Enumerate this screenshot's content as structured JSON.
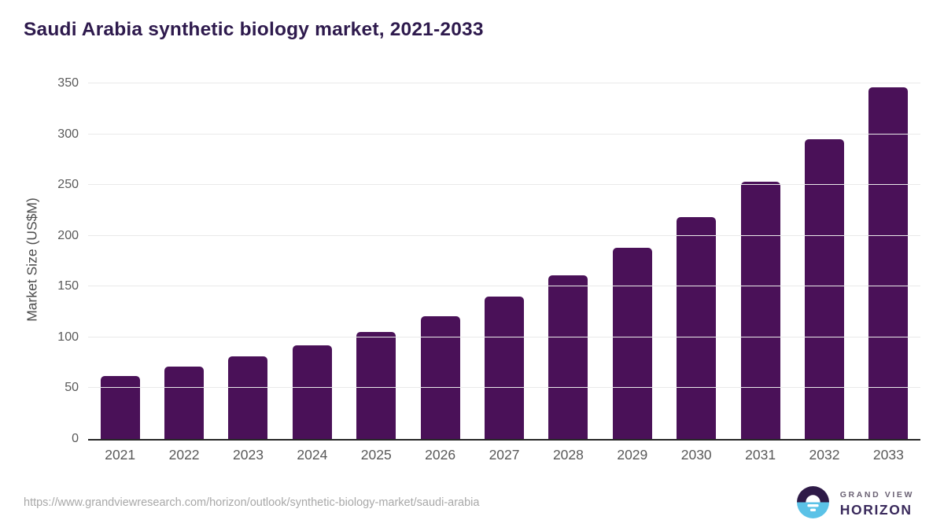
{
  "header": {
    "title": "Saudi Arabia synthetic biology market, 2021-2033"
  },
  "chart_data": {
    "type": "bar",
    "title": "Saudi Arabia synthetic biology market, 2021-2033",
    "categories": [
      "2021",
      "2022",
      "2023",
      "2024",
      "2025",
      "2026",
      "2027",
      "2028",
      "2029",
      "2030",
      "2031",
      "2032",
      "2033"
    ],
    "values": [
      62,
      71,
      81,
      92,
      105,
      121,
      140,
      161,
      188,
      218,
      253,
      295,
      346
    ],
    "xlabel": "",
    "ylabel": "Market Size (US$M)",
    "ylim": [
      0,
      350
    ],
    "yticks": [
      0,
      50,
      100,
      150,
      200,
      250,
      300,
      350
    ],
    "grid": true,
    "legend": "none",
    "bar_color": "#4a1158",
    "gridline_color": "#e9e9e9",
    "axis_line_color": "#262626",
    "tick_label_color": "#595959",
    "axis_title_color": "#4d4d4d",
    "title_color": "#2e1a4d"
  },
  "footer": {
    "source_url": "https://www.grandviewresearch.com/horizon/outlook/synthetic-biology-market/saudi-arabia",
    "logo": {
      "brand_top": "GRAND VIEW",
      "brand_bottom": "HORIZON",
      "circle_top_color": "#2e1a47",
      "circle_bottom_color": "#5bc2e7"
    }
  }
}
